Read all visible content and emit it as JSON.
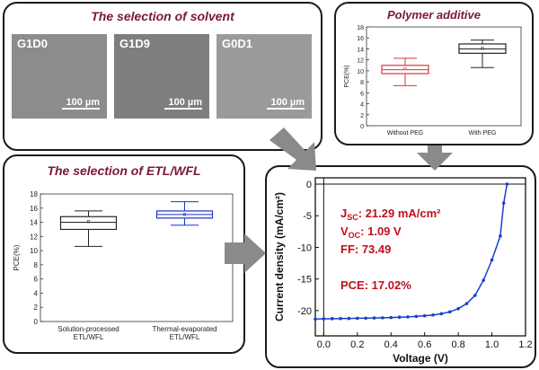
{
  "solvent_panel": {
    "title": "The selection of solvent",
    "images": [
      {
        "label": "G1D0",
        "scale": "100 µm"
      },
      {
        "label": "G1D9",
        "scale": "100 µm"
      },
      {
        "label": "G0D1",
        "scale": "100 µm"
      }
    ]
  },
  "polymer_panel": {
    "title": "Polymer additive",
    "ylabel": "PCE(%)",
    "yticks": [
      "0",
      "2",
      "4",
      "6",
      "8",
      "10",
      "12",
      "14",
      "16",
      "18"
    ],
    "categories": [
      "Without PEG",
      "With PEG"
    ]
  },
  "etl_panel": {
    "title": "The selection of ETL/WFL",
    "ylabel": "PCE(%)",
    "yticks": [
      "0",
      "2",
      "4",
      "6",
      "8",
      "10",
      "12",
      "14",
      "16",
      "18"
    ],
    "categories": [
      "Solution-processed\nETL/WFL",
      "Thermal-evaporated\nETL/WFL"
    ]
  },
  "jv_panel": {
    "ylabel": "Current density (mA/cm²)",
    "xlabel": "Voltage (V)",
    "yticks": [
      "0",
      "-5",
      "-10",
      "-15",
      "-20"
    ],
    "xticks": [
      "0.0",
      "0.2",
      "0.4",
      "0.6",
      "0.8",
      "1.0",
      "1.2"
    ],
    "metrics": {
      "jsc_label": "J",
      "jsc_sub": "SC",
      "jsc_value": ": 21.29 mA/cm²",
      "voc_label": "V",
      "voc_sub": "OC",
      "voc_value": ": 1.09 V",
      "ff": "FF: 73.49",
      "pce": "PCE: 17.02%"
    }
  },
  "colors": {
    "title": "#7a1838",
    "red_box": "#d9363a",
    "blue_box": "#1a33cc",
    "jv_text": "#c0101a",
    "jv_curve": "#1a3fc8",
    "arrow": "#8a8a8a"
  },
  "chart_data": [
    {
      "type": "box",
      "title": "Polymer additive",
      "ylabel": "PCE(%)",
      "ylim": [
        0,
        18
      ],
      "categories": [
        "Without PEG",
        "With PEG"
      ],
      "series": [
        {
          "min": 7.3,
          "q1": 9.5,
          "median": 10.2,
          "mean": 10.4,
          "q3": 11.0,
          "max": 12.3
        },
        {
          "min": 10.6,
          "q1": 13.2,
          "median": 14.0,
          "mean": 14.1,
          "q3": 14.9,
          "max": 15.6
        }
      ]
    },
    {
      "type": "box",
      "title": "The selection of ETL/WFL",
      "ylabel": "PCE(%)",
      "ylim": [
        0,
        18
      ],
      "categories": [
        "Solution-processed ETL/WFL",
        "Thermal-evaporated ETL/WFL"
      ],
      "series": [
        {
          "min": 10.6,
          "q1": 13.0,
          "median": 14.0,
          "mean": 14.1,
          "q3": 14.8,
          "max": 15.6
        },
        {
          "min": 13.6,
          "q1": 14.6,
          "median": 15.1,
          "mean": 15.1,
          "q3": 15.6,
          "max": 16.9
        }
      ]
    },
    {
      "type": "line",
      "xlabel": "Voltage (V)",
      "ylabel": "Current density (mA/cm²)",
      "xlim": [
        -0.05,
        1.2
      ],
      "ylim": [
        -24,
        1
      ],
      "series": [
        {
          "x": [
            -0.05,
            0.0,
            0.05,
            0.1,
            0.15,
            0.2,
            0.25,
            0.3,
            0.35,
            0.4,
            0.45,
            0.5,
            0.55,
            0.6,
            0.65,
            0.7,
            0.75,
            0.8,
            0.85,
            0.9,
            0.95,
            1.0,
            1.05,
            1.07,
            1.09
          ],
          "y": [
            -21.35,
            -21.3,
            -21.28,
            -21.26,
            -21.24,
            -21.22,
            -21.2,
            -21.17,
            -21.14,
            -21.1,
            -21.05,
            -21.0,
            -20.92,
            -20.82,
            -20.7,
            -20.5,
            -20.2,
            -19.7,
            -18.9,
            -17.6,
            -15.2,
            -12.0,
            -8.2,
            -3.0,
            0.0
          ]
        }
      ]
    }
  ]
}
